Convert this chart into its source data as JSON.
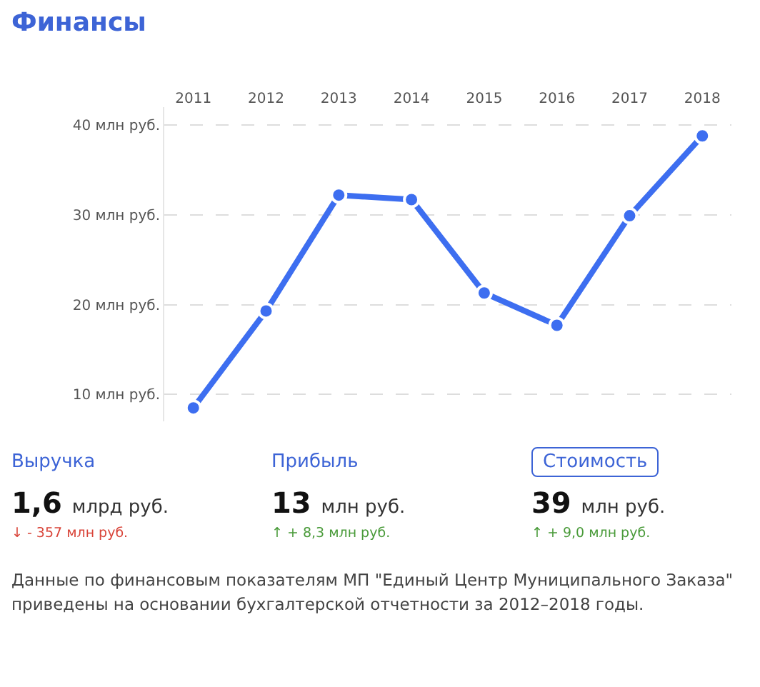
{
  "chart_data": {
    "type": "line",
    "title": "Финансы",
    "categories": [
      "2011",
      "2012",
      "2013",
      "2014",
      "2015",
      "2016",
      "2017",
      "2018"
    ],
    "series": [
      {
        "color": "#3d6ef0",
        "values": [
          8.5,
          19.3,
          32.2,
          31.7,
          21.3,
          17.7,
          29.9,
          38.8
        ]
      }
    ],
    "yticks": [
      {
        "value": 10,
        "label": "10 млн руб."
      },
      {
        "value": 20,
        "label": "20 млн руб."
      },
      {
        "value": 30,
        "label": "30 млн руб."
      },
      {
        "value": 40,
        "label": "40 млн руб."
      }
    ],
    "ylim": [
      7,
      42
    ],
    "grid": "y",
    "marker": "circle",
    "line_style": "solid",
    "legend": false,
    "annotations": [
      "Выручка",
      "1,6",
      "млрд руб.",
      "↓ - 357 млн руб.",
      "Прибыль",
      "13",
      "млн руб.",
      "↑ + 8,3 млн руб.",
      "Стоимость",
      "39",
      "млн руб.",
      "↑ + 9,0 млн руб.",
      "Данные по финансовым показателям МП \"Единый Центр Муниципального Заказа\" приведены на основании бухгалтерской отчетности за 2012–2018 годы."
    ]
  }
}
